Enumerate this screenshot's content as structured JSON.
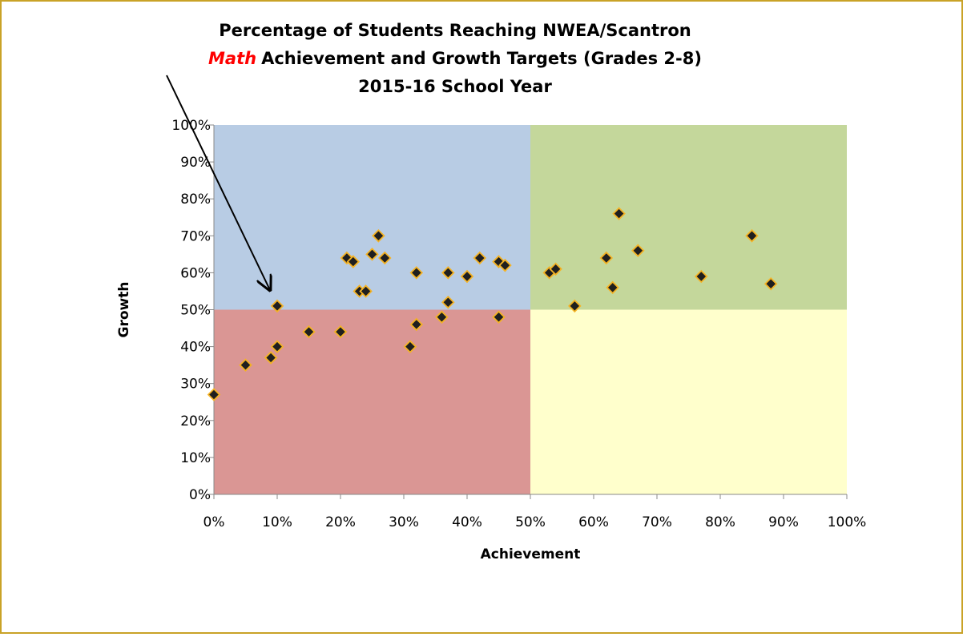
{
  "chart_data": {
    "type": "scatter",
    "title": [
      "Percentage of Students Reaching NWEA/Scantron",
      "Achievement and Growth Targets (Grades 2-8)",
      "2015-16 School Year"
    ],
    "title_emphasis": "Math",
    "title_emphasis_color": "#ff0000",
    "x_label": "Achievement",
    "y_label": "Growth",
    "xlim": [
      0,
      100
    ],
    "ylim": [
      0,
      100
    ],
    "xticks": [
      {
        "value": 0,
        "label": "0%"
      },
      {
        "value": 10,
        "label": "10%"
      },
      {
        "value": 20,
        "label": "20%"
      },
      {
        "value": 30,
        "label": "30%"
      },
      {
        "value": 40,
        "label": "40%"
      },
      {
        "value": 50,
        "label": "50%"
      },
      {
        "value": 60,
        "label": "60%"
      },
      {
        "value": 70,
        "label": "70%"
      },
      {
        "value": 80,
        "label": "80%"
      },
      {
        "value": 90,
        "label": "90%"
      },
      {
        "value": 100,
        "label": "100%"
      }
    ],
    "yticks": [
      {
        "value": 0,
        "label": "0%"
      },
      {
        "value": 10,
        "label": "10%"
      },
      {
        "value": 20,
        "label": "20%"
      },
      {
        "value": 30,
        "label": "30%"
      },
      {
        "value": 40,
        "label": "40%"
      },
      {
        "value": 50,
        "label": "50%"
      },
      {
        "value": 60,
        "label": "60%"
      },
      {
        "value": 70,
        "label": "70%"
      },
      {
        "value": 80,
        "label": "80%"
      },
      {
        "value": 90,
        "label": "90%"
      },
      {
        "value": 100,
        "label": "100%"
      }
    ],
    "quadrant_split": {
      "x": 50,
      "y": 50
    },
    "quadrant_colors": {
      "upper_left": "#b8cce4",
      "upper_right": "#c4d79b",
      "lower_left": "#da9694",
      "lower_right": "#ffffcc"
    },
    "marker_color": "#1f1f1f",
    "marker_edge_color": "#f5b324",
    "series": [
      {
        "x": [
          0,
          5,
          9,
          10,
          10,
          15,
          20,
          21,
          22,
          23,
          24,
          25,
          26,
          27,
          31,
          32,
          32,
          36,
          37,
          37,
          40,
          42,
          45,
          45,
          46,
          53,
          54,
          57,
          62,
          63,
          64,
          67,
          77,
          85,
          88
        ],
        "values": [
          27,
          35,
          37,
          51,
          40,
          44,
          44,
          64,
          63,
          55,
          55,
          65,
          70,
          64,
          40,
          60,
          46,
          48,
          60,
          52,
          59,
          64,
          63,
          48,
          62,
          60,
          61,
          51,
          64,
          56,
          76,
          66,
          59,
          70,
          57
        ]
      }
    ]
  }
}
